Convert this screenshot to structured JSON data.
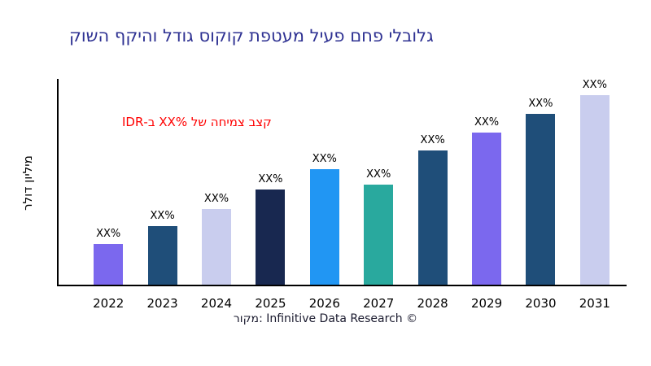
{
  "chart_data": {
    "type": "bar",
    "title": "גלובלי פחם פעיל מעטפת קוקוס גודל והיקף השוק",
    "title_color": "#2e3192",
    "xlabel": "",
    "ylabel": "מיליון דולר",
    "categories": [
      "2022",
      "2023",
      "2024",
      "2025",
      "2026",
      "2027",
      "2028",
      "2029",
      "2030",
      "2031"
    ],
    "values": [
      49,
      71,
      92,
      116,
      140,
      122,
      163,
      185,
      208,
      233
    ],
    "values_note": "relative bar heights estimated from pixels; data labels show placeholder percentages",
    "value_labels": [
      "XX%",
      "XX%",
      "XX%",
      "XX%",
      "XX%",
      "XX%",
      "XX%",
      "XX%",
      "XX%",
      "XX%"
    ],
    "bar_colors": [
      "#7B68EE",
      "#1F4E79",
      "#C9CDEE",
      "#182850",
      "#2196F3",
      "#29A99E",
      "#1F4E79",
      "#7B68EE",
      "#1F4E79",
      "#C9CDEE"
    ],
    "ylim": [
      0,
      250
    ],
    "grid": false,
    "legend": "none",
    "axis_color": "#000000",
    "annotation": {
      "text": "קצב צמיחה של ‎XX%‎ ב-IDR",
      "color": "#ff0000"
    }
  },
  "footer": {
    "caption": "מקור: Infinitive Data Research ©"
  }
}
